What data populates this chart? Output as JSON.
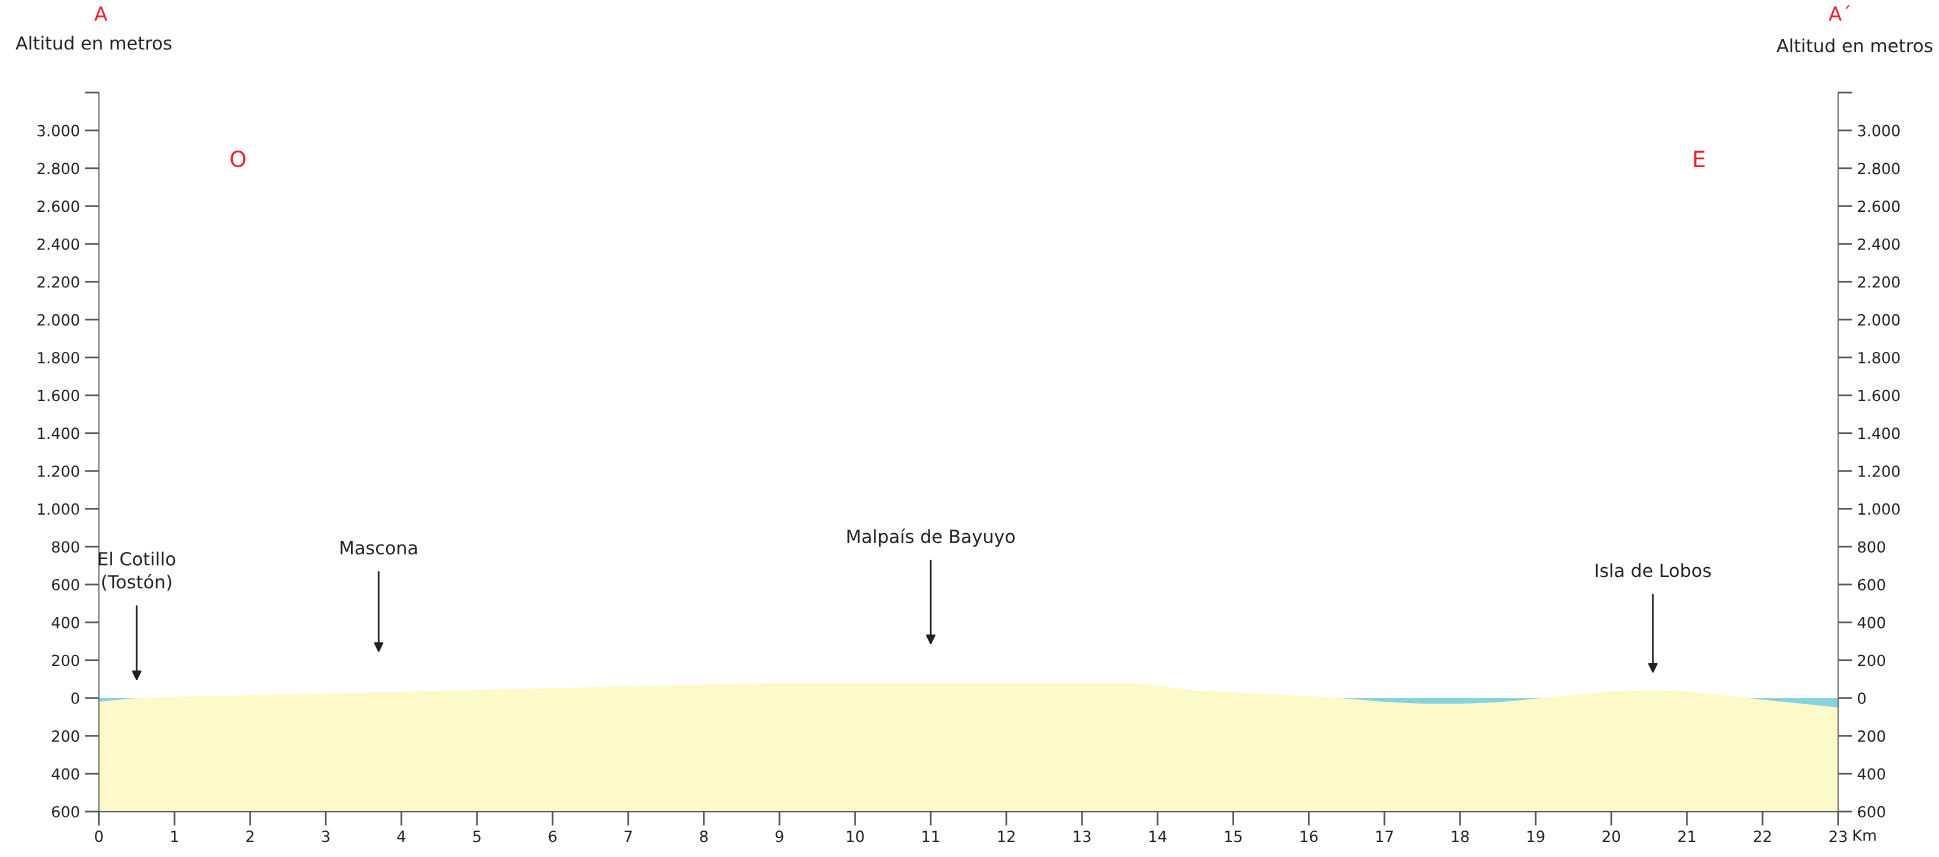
{
  "chart_data": {
    "type": "area",
    "xlabel": "Km",
    "ylabel": "Altitud en metros",
    "y2label": "Altitud en metros",
    "annotations": [
      "A",
      "A´",
      "O",
      "E",
      "El Cotillo\n(Tostón)",
      "Mascona",
      "Malpaís de Bayuyo",
      "Isla de Lobos"
    ],
    "x": [
      0.5,
      1,
      2,
      4,
      7,
      9,
      11,
      12,
      13,
      13.7,
      14.5,
      16,
      16.4,
      19.1,
      20,
      20.5,
      21,
      21.8
    ],
    "series": [
      {
        "color": "#fdf9c8",
        "values": [
          0,
          7,
          15,
          33,
          62,
          80,
          80,
          80,
          80,
          80,
          40,
          10,
          0,
          0,
          36,
          43,
          36,
          0
        ]
      },
      {
        "color": "#86d3e0",
        "x": [
          0,
          0.5,
          16.4,
          17,
          17.5,
          18,
          18.5,
          19.1,
          21.8,
          22.4,
          23
        ],
        "values": [
          -20,
          0,
          0,
          -20,
          -30,
          -30,
          -22,
          0,
          0,
          -25,
          -50
        ]
      }
    ],
    "xlim": [
      0,
      23
    ],
    "xticks": [
      0,
      1,
      2,
      3,
      4,
      5,
      6,
      7,
      8,
      9,
      10,
      11,
      12,
      13,
      14,
      15,
      16,
      17,
      18,
      19,
      20,
      21,
      22,
      23
    ],
    "ylim": [
      -600,
      3200
    ],
    "yticks": [
      {
        "value": -600,
        "label": "600"
      },
      {
        "value": -400,
        "label": "400"
      },
      {
        "value": -200,
        "label": "200"
      },
      0,
      200,
      400,
      600,
      800,
      {
        "value": 1000,
        "label": "1.000"
      },
      {
        "value": 1200,
        "label": "1.200"
      },
      {
        "value": 1400,
        "label": "1.400"
      },
      {
        "value": 1600,
        "label": "1.600"
      },
      {
        "value": 1800,
        "label": "1.800"
      },
      {
        "value": 2000,
        "label": "2.000"
      },
      {
        "value": 2200,
        "label": "2.200"
      },
      {
        "value": 2400,
        "label": "2.400"
      },
      {
        "value": 2600,
        "label": "2.600"
      },
      {
        "value": 2800,
        "label": "2.800"
      },
      {
        "value": 3000,
        "label": "3.000"
      },
      {
        "value": 3200,
        "label": null
      }
    ],
    "y2lim": [
      -600,
      3200
    ],
    "y2ticks": [
      {
        "value": -600,
        "label": "600"
      },
      {
        "value": -400,
        "label": "400"
      },
      {
        "value": -200,
        "label": "200"
      },
      0,
      200,
      400,
      600,
      800,
      {
        "value": 1000,
        "label": "1.000"
      },
      {
        "value": 1200,
        "label": "1.200"
      },
      {
        "value": 1400,
        "label": "1.400"
      },
      {
        "value": 1600,
        "label": "1.600"
      },
      {
        "value": 1800,
        "label": "1.800"
      },
      {
        "value": 2000,
        "label": "2.000"
      },
      {
        "value": 2200,
        "label": "2.200"
      },
      {
        "value": 2400,
        "label": "2.400"
      },
      {
        "value": 2600,
        "label": "2.600"
      },
      {
        "value": 2800,
        "label": "2.800"
      },
      {
        "value": 3000,
        "label": "3.000"
      },
      {
        "value": 3200,
        "label": null
      }
    ],
    "bands": [
      {
        "axis": "y",
        "from": -600,
        "to": 0,
        "color": "#fdf9c8"
      }
    ],
    "grid": false
  }
}
